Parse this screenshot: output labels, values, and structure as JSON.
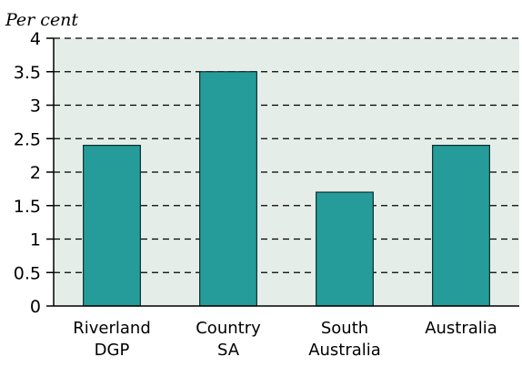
{
  "chart_data": {
    "type": "bar",
    "unit_label": "Per cent",
    "categories": [
      [
        "Riverland",
        "DGP"
      ],
      [
        "Country",
        "SA"
      ],
      [
        "South",
        "Australia"
      ],
      [
        "Australia"
      ]
    ],
    "values": [
      2.4,
      3.5,
      1.7,
      2.4
    ],
    "ylim": [
      0,
      4
    ],
    "yticks": [
      "0",
      "0.5",
      "1",
      "1.5",
      "2",
      "2.5",
      "3",
      "3.5",
      "4"
    ],
    "grid": "horizontal-dashed",
    "colors": {
      "bar": "#259c9a",
      "bar_edge": "#0b2f2e",
      "plot_bg": "#e5ede8",
      "grid": "#000000"
    }
  }
}
